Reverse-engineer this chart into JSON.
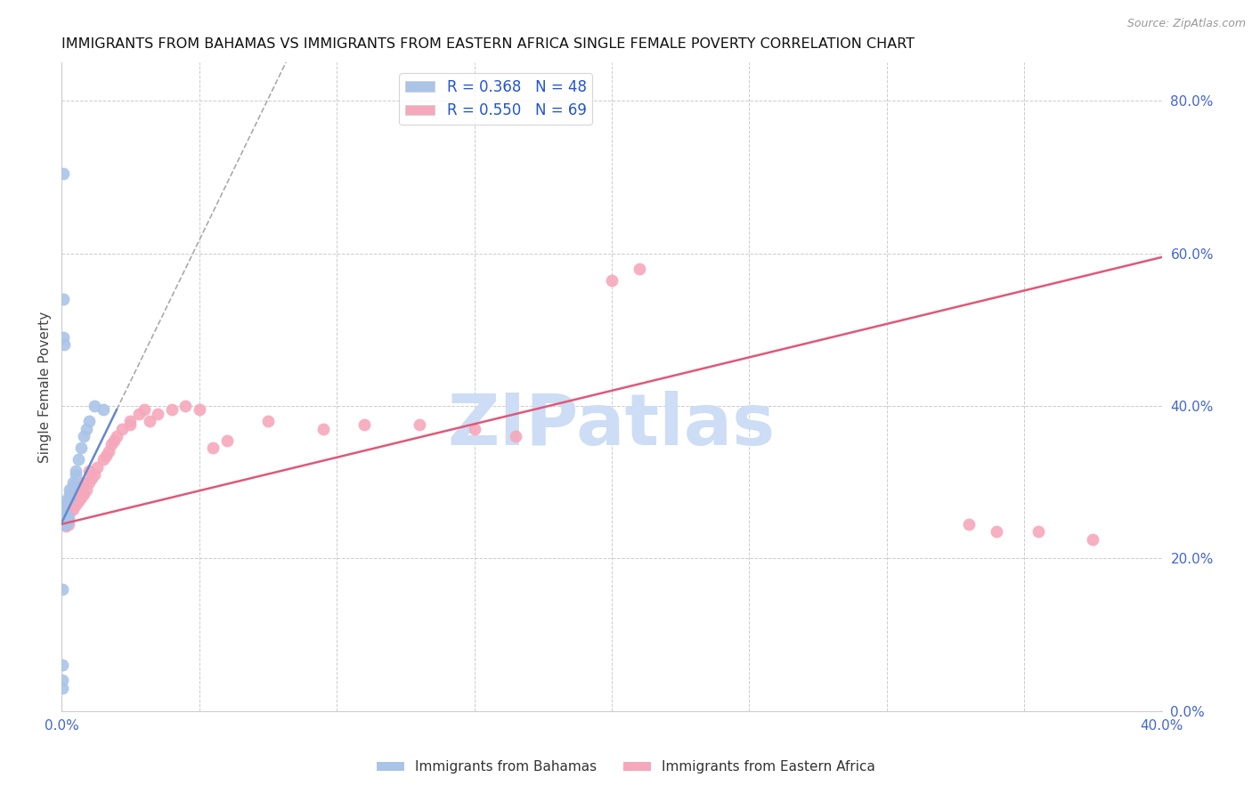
{
  "title": "IMMIGRANTS FROM BAHAMAS VS IMMIGRANTS FROM EASTERN AFRICA SINGLE FEMALE POVERTY CORRELATION CHART",
  "source": "Source: ZipAtlas.com",
  "ylabel": "Single Female Poverty",
  "legend_label1": "Immigrants from Bahamas",
  "legend_label2": "Immigrants from Eastern Africa",
  "R1": 0.368,
  "N1": 48,
  "R2": 0.55,
  "N2": 69,
  "color1": "#aac4e8",
  "color2": "#f5a8bc",
  "line_color1": "#6688cc",
  "line_color2": "#e05878",
  "xlim": [
    0.0,
    0.4
  ],
  "ylim": [
    0.0,
    0.85
  ],
  "watermark": "ZIPatlas",
  "watermark_color": "#ccddf5",
  "background_color": "#ffffff",
  "bahamas_x": [
    0.0005,
    0.0005,
    0.0005,
    0.0006,
    0.0007,
    0.0008,
    0.001,
    0.001,
    0.001,
    0.001,
    0.0012,
    0.0012,
    0.0013,
    0.0014,
    0.0015,
    0.0015,
    0.0016,
    0.0017,
    0.0018,
    0.002,
    0.002,
    0.002,
    0.002,
    0.0022,
    0.0023,
    0.0025,
    0.003,
    0.003,
    0.003,
    0.004,
    0.004,
    0.005,
    0.005,
    0.006,
    0.007,
    0.008,
    0.009,
    0.01,
    0.012,
    0.015,
    0.0005,
    0.0006,
    0.0007,
    0.0008,
    0.0003,
    0.0004,
    0.0004,
    0.0003
  ],
  "bahamas_y": [
    0.265,
    0.27,
    0.275,
    0.25,
    0.26,
    0.255,
    0.245,
    0.255,
    0.26,
    0.27,
    0.25,
    0.255,
    0.248,
    0.252,
    0.245,
    0.25,
    0.248,
    0.252,
    0.246,
    0.25,
    0.248,
    0.252,
    0.255,
    0.248,
    0.25,
    0.252,
    0.28,
    0.285,
    0.29,
    0.295,
    0.3,
    0.31,
    0.315,
    0.33,
    0.345,
    0.36,
    0.37,
    0.38,
    0.4,
    0.395,
    0.705,
    0.54,
    0.49,
    0.48,
    0.16,
    0.06,
    0.04,
    0.03
  ],
  "eastern_africa_x": [
    0.0004,
    0.0005,
    0.0006,
    0.0007,
    0.0008,
    0.0009,
    0.001,
    0.001,
    0.0011,
    0.0012,
    0.0013,
    0.0014,
    0.0015,
    0.0016,
    0.0017,
    0.0018,
    0.002,
    0.002,
    0.002,
    0.0022,
    0.0025,
    0.003,
    0.003,
    0.004,
    0.004,
    0.005,
    0.005,
    0.006,
    0.006,
    0.007,
    0.007,
    0.008,
    0.008,
    0.009,
    0.01,
    0.01,
    0.011,
    0.012,
    0.013,
    0.015,
    0.016,
    0.017,
    0.018,
    0.019,
    0.02,
    0.022,
    0.025,
    0.025,
    0.028,
    0.03,
    0.032,
    0.035,
    0.04,
    0.045,
    0.05,
    0.055,
    0.06,
    0.075,
    0.095,
    0.11,
    0.13,
    0.15,
    0.165,
    0.2,
    0.21,
    0.33,
    0.34,
    0.355,
    0.375
  ],
  "eastern_africa_y": [
    0.25,
    0.245,
    0.252,
    0.248,
    0.255,
    0.245,
    0.252,
    0.258,
    0.248,
    0.252,
    0.245,
    0.248,
    0.242,
    0.25,
    0.245,
    0.252,
    0.248,
    0.255,
    0.26,
    0.248,
    0.245,
    0.26,
    0.275,
    0.265,
    0.28,
    0.27,
    0.285,
    0.275,
    0.29,
    0.28,
    0.295,
    0.285,
    0.3,
    0.29,
    0.3,
    0.315,
    0.305,
    0.31,
    0.32,
    0.33,
    0.335,
    0.34,
    0.35,
    0.355,
    0.36,
    0.37,
    0.375,
    0.38,
    0.39,
    0.395,
    0.38,
    0.39,
    0.395,
    0.4,
    0.395,
    0.345,
    0.355,
    0.38,
    0.37,
    0.375,
    0.375,
    0.37,
    0.36,
    0.565,
    0.58,
    0.245,
    0.235,
    0.235,
    0.225
  ],
  "ytick_labels": [
    "0.0%",
    "20.0%",
    "40.0%",
    "60.0%",
    "80.0%"
  ],
  "ytick_values": [
    0.0,
    0.2,
    0.4,
    0.6,
    0.8
  ],
  "xtick_values": [
    0.0,
    0.05,
    0.1,
    0.15,
    0.2,
    0.25,
    0.3,
    0.35,
    0.4
  ],
  "xtick_labels": [
    "0.0%",
    "",
    "",
    "",
    "",
    "",
    "",
    "",
    "40.0%"
  ],
  "bahamas_line_x": [
    0.0,
    0.02
  ],
  "bahamas_line_y": [
    0.247,
    0.395
  ],
  "eastern_africa_line_x": [
    0.0,
    0.4
  ],
  "eastern_africa_line_y": [
    0.245,
    0.595
  ]
}
